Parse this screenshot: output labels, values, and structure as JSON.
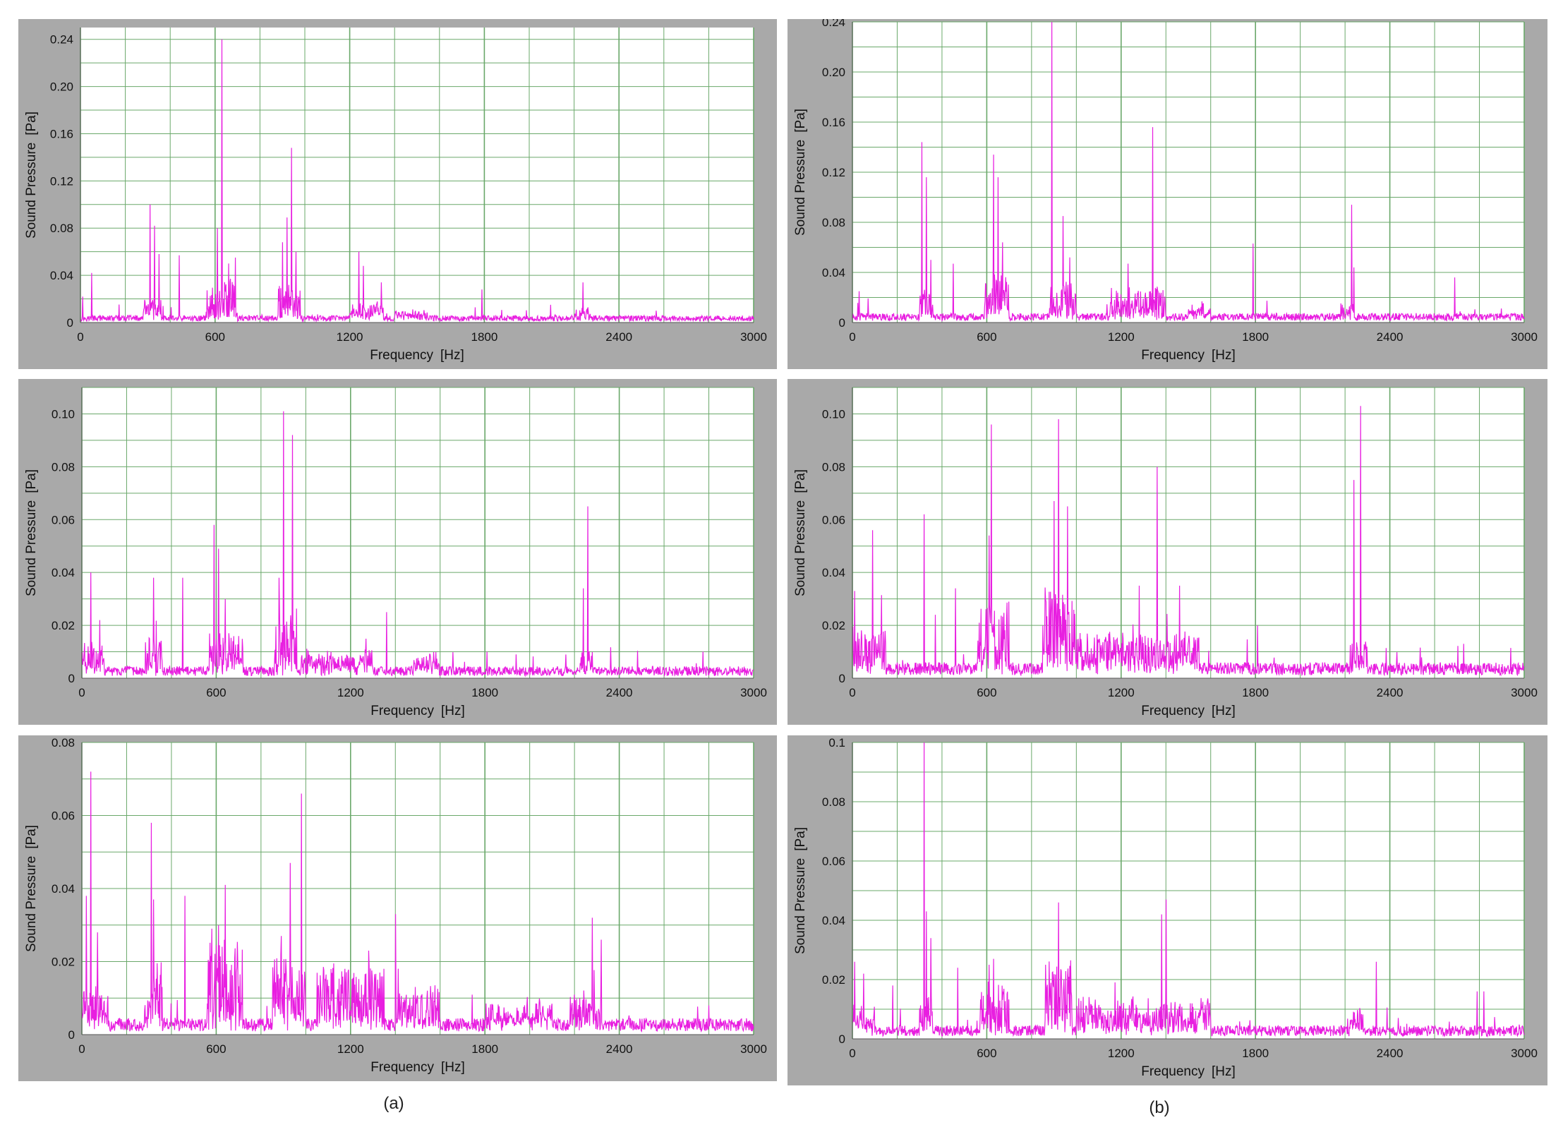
{
  "figure": {
    "caption_a": "(a)",
    "caption_b": "(b)"
  },
  "colors": {
    "series": "#e81ee0",
    "grid": "#6aa86a",
    "plot_bg": "#ffffff",
    "frame": "#a9a9a9"
  },
  "chart_data": [
    {
      "type": "line",
      "xlabel": "Frequency",
      "xunit": "[Hz]",
      "ylabel": "Sound Pressure",
      "yunit": "[Pa]",
      "xlim": [
        0,
        3000
      ],
      "ylim": [
        0,
        0.25
      ],
      "xticks": [
        0,
        600,
        1200,
        1800,
        2400,
        3000
      ],
      "yticks": [
        0,
        0.04,
        0.08,
        0.12,
        0.16,
        0.2,
        0.24
      ],
      "ytick_labels": [
        "0",
        "0.04",
        "0.08",
        "0.12",
        "0.16",
        "0.20",
        "0.24"
      ],
      "noise_floor": 0.004,
      "bands": [
        {
          "start": 280,
          "end": 360,
          "level": 0.012
        },
        {
          "start": 560,
          "end": 700,
          "level": 0.025
        },
        {
          "start": 880,
          "end": 980,
          "level": 0.02
        },
        {
          "start": 1200,
          "end": 1350,
          "level": 0.01
        },
        {
          "start": 1400,
          "end": 1550,
          "level": 0.005
        },
        {
          "start": 2200,
          "end": 2280,
          "level": 0.006
        }
      ],
      "peaks": [
        [
          10,
          0.022
        ],
        [
          50,
          0.042
        ],
        [
          310,
          0.1
        ],
        [
          330,
          0.082
        ],
        [
          350,
          0.058
        ],
        [
          440,
          0.057
        ],
        [
          610,
          0.08
        ],
        [
          630,
          0.24
        ],
        [
          660,
          0.05
        ],
        [
          690,
          0.055
        ],
        [
          900,
          0.068
        ],
        [
          920,
          0.089
        ],
        [
          940,
          0.148
        ],
        [
          960,
          0.06
        ],
        [
          1240,
          0.06
        ],
        [
          1260,
          0.048
        ],
        [
          1340,
          0.034
        ],
        [
          1790,
          0.028
        ],
        [
          2240,
          0.034
        ]
      ]
    },
    {
      "type": "line",
      "xlabel": "Frequency",
      "xunit": "[Hz]",
      "ylabel": "Sound Pressure",
      "yunit": "[Pa]",
      "xlim": [
        0,
        3000
      ],
      "ylim": [
        0,
        0.24
      ],
      "xticks": [
        0,
        600,
        1200,
        1800,
        2400,
        3000
      ],
      "yticks": [
        0,
        0.04,
        0.08,
        0.12,
        0.16,
        0.2,
        0.24
      ],
      "ytick_labels": [
        "0",
        "0.04",
        "0.08",
        "0.12",
        "0.16",
        "0.20",
        "0.24"
      ],
      "noise_floor": 0.005,
      "bands": [
        {
          "start": 300,
          "end": 360,
          "level": 0.015
        },
        {
          "start": 590,
          "end": 700,
          "level": 0.03
        },
        {
          "start": 880,
          "end": 1000,
          "level": 0.02
        },
        {
          "start": 1150,
          "end": 1400,
          "level": 0.018
        },
        {
          "start": 1500,
          "end": 1600,
          "level": 0.008
        },
        {
          "start": 2180,
          "end": 2240,
          "level": 0.01
        }
      ],
      "peaks": [
        [
          30,
          0.025
        ],
        [
          310,
          0.144
        ],
        [
          330,
          0.116
        ],
        [
          350,
          0.05
        ],
        [
          450,
          0.047
        ],
        [
          630,
          0.134
        ],
        [
          650,
          0.116
        ],
        [
          670,
          0.064
        ],
        [
          890,
          0.24
        ],
        [
          940,
          0.085
        ],
        [
          970,
          0.052
        ],
        [
          1230,
          0.047
        ],
        [
          1340,
          0.156
        ],
        [
          1790,
          0.063
        ],
        [
          2230,
          0.094
        ],
        [
          2240,
          0.044
        ],
        [
          2690,
          0.036
        ]
      ]
    },
    {
      "type": "line",
      "xlabel": "Frequency",
      "xunit": "[Hz]",
      "ylabel": "Sound Pressure",
      "yunit": "[Pa]",
      "xlim": [
        0,
        3000
      ],
      "ylim": [
        0,
        0.11
      ],
      "xticks": [
        0,
        600,
        1200,
        1800,
        2400,
        3000
      ],
      "yticks": [
        0,
        0.02,
        0.04,
        0.06,
        0.08,
        0.1
      ],
      "ytick_labels": [
        "0",
        "0.02",
        "0.04",
        "0.06",
        "0.08",
        "0.10"
      ],
      "noise_floor": 0.003,
      "bands": [
        {
          "start": 0,
          "end": 100,
          "level": 0.008
        },
        {
          "start": 280,
          "end": 360,
          "level": 0.01
        },
        {
          "start": 570,
          "end": 720,
          "level": 0.012
        },
        {
          "start": 860,
          "end": 960,
          "level": 0.02
        },
        {
          "start": 980,
          "end": 1300,
          "level": 0.006
        },
        {
          "start": 1480,
          "end": 1600,
          "level": 0.005
        },
        {
          "start": 2220,
          "end": 2280,
          "level": 0.006
        }
      ],
      "peaks": [
        [
          40,
          0.04
        ],
        [
          80,
          0.022
        ],
        [
          320,
          0.038
        ],
        [
          450,
          0.038
        ],
        [
          590,
          0.058
        ],
        [
          610,
          0.049
        ],
        [
          640,
          0.03
        ],
        [
          880,
          0.038
        ],
        [
          900,
          0.101
        ],
        [
          940,
          0.092
        ],
        [
          1360,
          0.025
        ],
        [
          1810,
          0.01
        ],
        [
          2240,
          0.034
        ],
        [
          2260,
          0.065
        ]
      ]
    },
    {
      "type": "line",
      "xlabel": "Frequency",
      "xunit": "[Hz]",
      "ylabel": "Sound Pressure",
      "yunit": "[Pa]",
      "xlim": [
        0,
        3000
      ],
      "ylim": [
        0,
        0.11
      ],
      "xticks": [
        0,
        600,
        1200,
        1800,
        2400,
        3000
      ],
      "yticks": [
        0,
        0.02,
        0.04,
        0.06,
        0.08,
        0.1
      ],
      "ytick_labels": [
        "0",
        "0.02",
        "0.04",
        "0.06",
        "0.08",
        "0.10"
      ],
      "noise_floor": 0.004,
      "bands": [
        {
          "start": 0,
          "end": 150,
          "level": 0.012
        },
        {
          "start": 560,
          "end": 700,
          "level": 0.02
        },
        {
          "start": 850,
          "end": 1000,
          "level": 0.022
        },
        {
          "start": 1000,
          "end": 1550,
          "level": 0.01
        },
        {
          "start": 2220,
          "end": 2300,
          "level": 0.008
        }
      ],
      "peaks": [
        [
          10,
          0.033
        ],
        [
          90,
          0.056
        ],
        [
          320,
          0.062
        ],
        [
          370,
          0.024
        ],
        [
          460,
          0.034
        ],
        [
          610,
          0.054
        ],
        [
          620,
          0.096
        ],
        [
          900,
          0.067
        ],
        [
          920,
          0.098
        ],
        [
          960,
          0.065
        ],
        [
          1280,
          0.035
        ],
        [
          1360,
          0.08
        ],
        [
          1460,
          0.035
        ],
        [
          1810,
          0.02
        ],
        [
          2240,
          0.075
        ],
        [
          2270,
          0.103
        ],
        [
          2730,
          0.013
        ]
      ]
    },
    {
      "type": "line",
      "xlabel": "Frequency",
      "xunit": "[Hz]",
      "ylabel": "Sound Pressure",
      "yunit": "[Pa]",
      "xlim": [
        0,
        3000
      ],
      "ylim": [
        0,
        0.08
      ],
      "xticks": [
        0,
        600,
        1200,
        1800,
        2400,
        3000
      ],
      "yticks": [
        0,
        0.02,
        0.04,
        0.06,
        0.08
      ],
      "ytick_labels": [
        "0",
        "0.02",
        "0.04",
        "0.06",
        "0.08"
      ],
      "noise_floor": 0.003,
      "bands": [
        {
          "start": 0,
          "end": 120,
          "level": 0.008
        },
        {
          "start": 280,
          "end": 360,
          "level": 0.012
        },
        {
          "start": 560,
          "end": 720,
          "level": 0.018
        },
        {
          "start": 850,
          "end": 1000,
          "level": 0.015
        },
        {
          "start": 1050,
          "end": 1350,
          "level": 0.012
        },
        {
          "start": 1400,
          "end": 1600,
          "level": 0.008
        },
        {
          "start": 1800,
          "end": 2100,
          "level": 0.004
        },
        {
          "start": 2180,
          "end": 2320,
          "level": 0.006
        }
      ],
      "peaks": [
        [
          20,
          0.038
        ],
        [
          40,
          0.072
        ],
        [
          70,
          0.028
        ],
        [
          310,
          0.058
        ],
        [
          320,
          0.037
        ],
        [
          460,
          0.038
        ],
        [
          580,
          0.029
        ],
        [
          610,
          0.03
        ],
        [
          640,
          0.041
        ],
        [
          890,
          0.027
        ],
        [
          930,
          0.047
        ],
        [
          980,
          0.066
        ],
        [
          1280,
          0.023
        ],
        [
          1400,
          0.033
        ],
        [
          2280,
          0.032
        ],
        [
          2320,
          0.026
        ],
        [
          2800,
          0.008
        ]
      ]
    },
    {
      "type": "line",
      "xlabel": "Frequency",
      "xunit": "[Hz]",
      "ylabel": "Sound Pressure",
      "yunit": "[Pa]",
      "xlim": [
        0,
        3000
      ],
      "ylim": [
        0,
        0.1
      ],
      "xticks": [
        0,
        600,
        1200,
        1800,
        2400,
        3000
      ],
      "yticks": [
        0,
        0.02,
        0.04,
        0.06,
        0.08,
        0.1
      ],
      "ytick_labels": [
        "0",
        "0.02",
        "0.04",
        "0.06",
        "0.08",
        "0.1"
      ],
      "noise_floor": 0.003,
      "bands": [
        {
          "start": 0,
          "end": 100,
          "level": 0.006
        },
        {
          "start": 300,
          "end": 360,
          "level": 0.008
        },
        {
          "start": 570,
          "end": 700,
          "level": 0.012
        },
        {
          "start": 860,
          "end": 980,
          "level": 0.018
        },
        {
          "start": 1000,
          "end": 1600,
          "level": 0.008
        },
        {
          "start": 2220,
          "end": 2280,
          "level": 0.005
        }
      ],
      "peaks": [
        [
          10,
          0.026
        ],
        [
          50,
          0.022
        ],
        [
          180,
          0.018
        ],
        [
          320,
          0.1
        ],
        [
          330,
          0.043
        ],
        [
          350,
          0.034
        ],
        [
          470,
          0.024
        ],
        [
          610,
          0.025
        ],
        [
          630,
          0.027
        ],
        [
          920,
          0.046
        ],
        [
          1380,
          0.042
        ],
        [
          1400,
          0.047
        ],
        [
          2340,
          0.026
        ],
        [
          2790,
          0.016
        ],
        [
          2820,
          0.016
        ]
      ]
    }
  ]
}
